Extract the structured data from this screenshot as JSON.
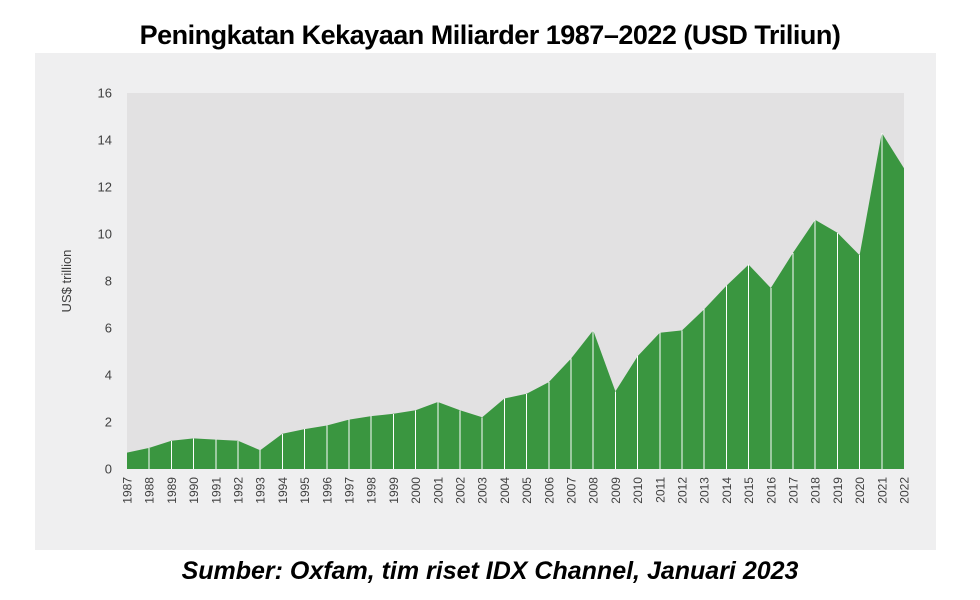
{
  "title": "Peningkatan Kekayaan Miliarder 1987–2022 (USD Triliun)",
  "source": "Sumber: Oxfam, tim riset IDX Channel, Januari 2023",
  "chart_data": {
    "type": "area",
    "title": "Peningkatan Kekayaan Miliarder 1987–2022 (USD Triliun)",
    "xlabel": "",
    "ylabel": "US$ trillion",
    "x": [
      1987,
      1988,
      1989,
      1990,
      1991,
      1992,
      1993,
      1994,
      1995,
      1996,
      1997,
      1998,
      1999,
      2000,
      2001,
      2002,
      2003,
      2004,
      2005,
      2006,
      2007,
      2008,
      2009,
      2010,
      2011,
      2012,
      2013,
      2014,
      2015,
      2016,
      2017,
      2018,
      2019,
      2020,
      2021,
      2022
    ],
    "values": [
      0.7,
      0.9,
      1.2,
      1.3,
      1.25,
      1.2,
      0.8,
      1.5,
      1.7,
      1.85,
      2.1,
      2.25,
      2.35,
      2.5,
      2.85,
      2.5,
      2.2,
      3.0,
      3.2,
      3.7,
      4.7,
      5.9,
      3.3,
      4.8,
      5.8,
      5.9,
      6.8,
      7.8,
      8.7,
      7.7,
      9.2,
      10.6,
      10.05,
      9.1,
      14.3,
      12.8
    ],
    "ylim": [
      0,
      16
    ],
    "yticks": [
      0,
      2,
      4,
      6,
      8,
      10,
      12,
      14,
      16
    ],
    "grid": false,
    "legend": false,
    "year_separators": true,
    "colors": {
      "area": "#3a9640",
      "separator": "#ffffff",
      "plot_bg": "#e2e1e2",
      "panel_bg": "#efeff0",
      "page_bg": "#ffffff",
      "tick_text": "#3f3f3f"
    }
  }
}
